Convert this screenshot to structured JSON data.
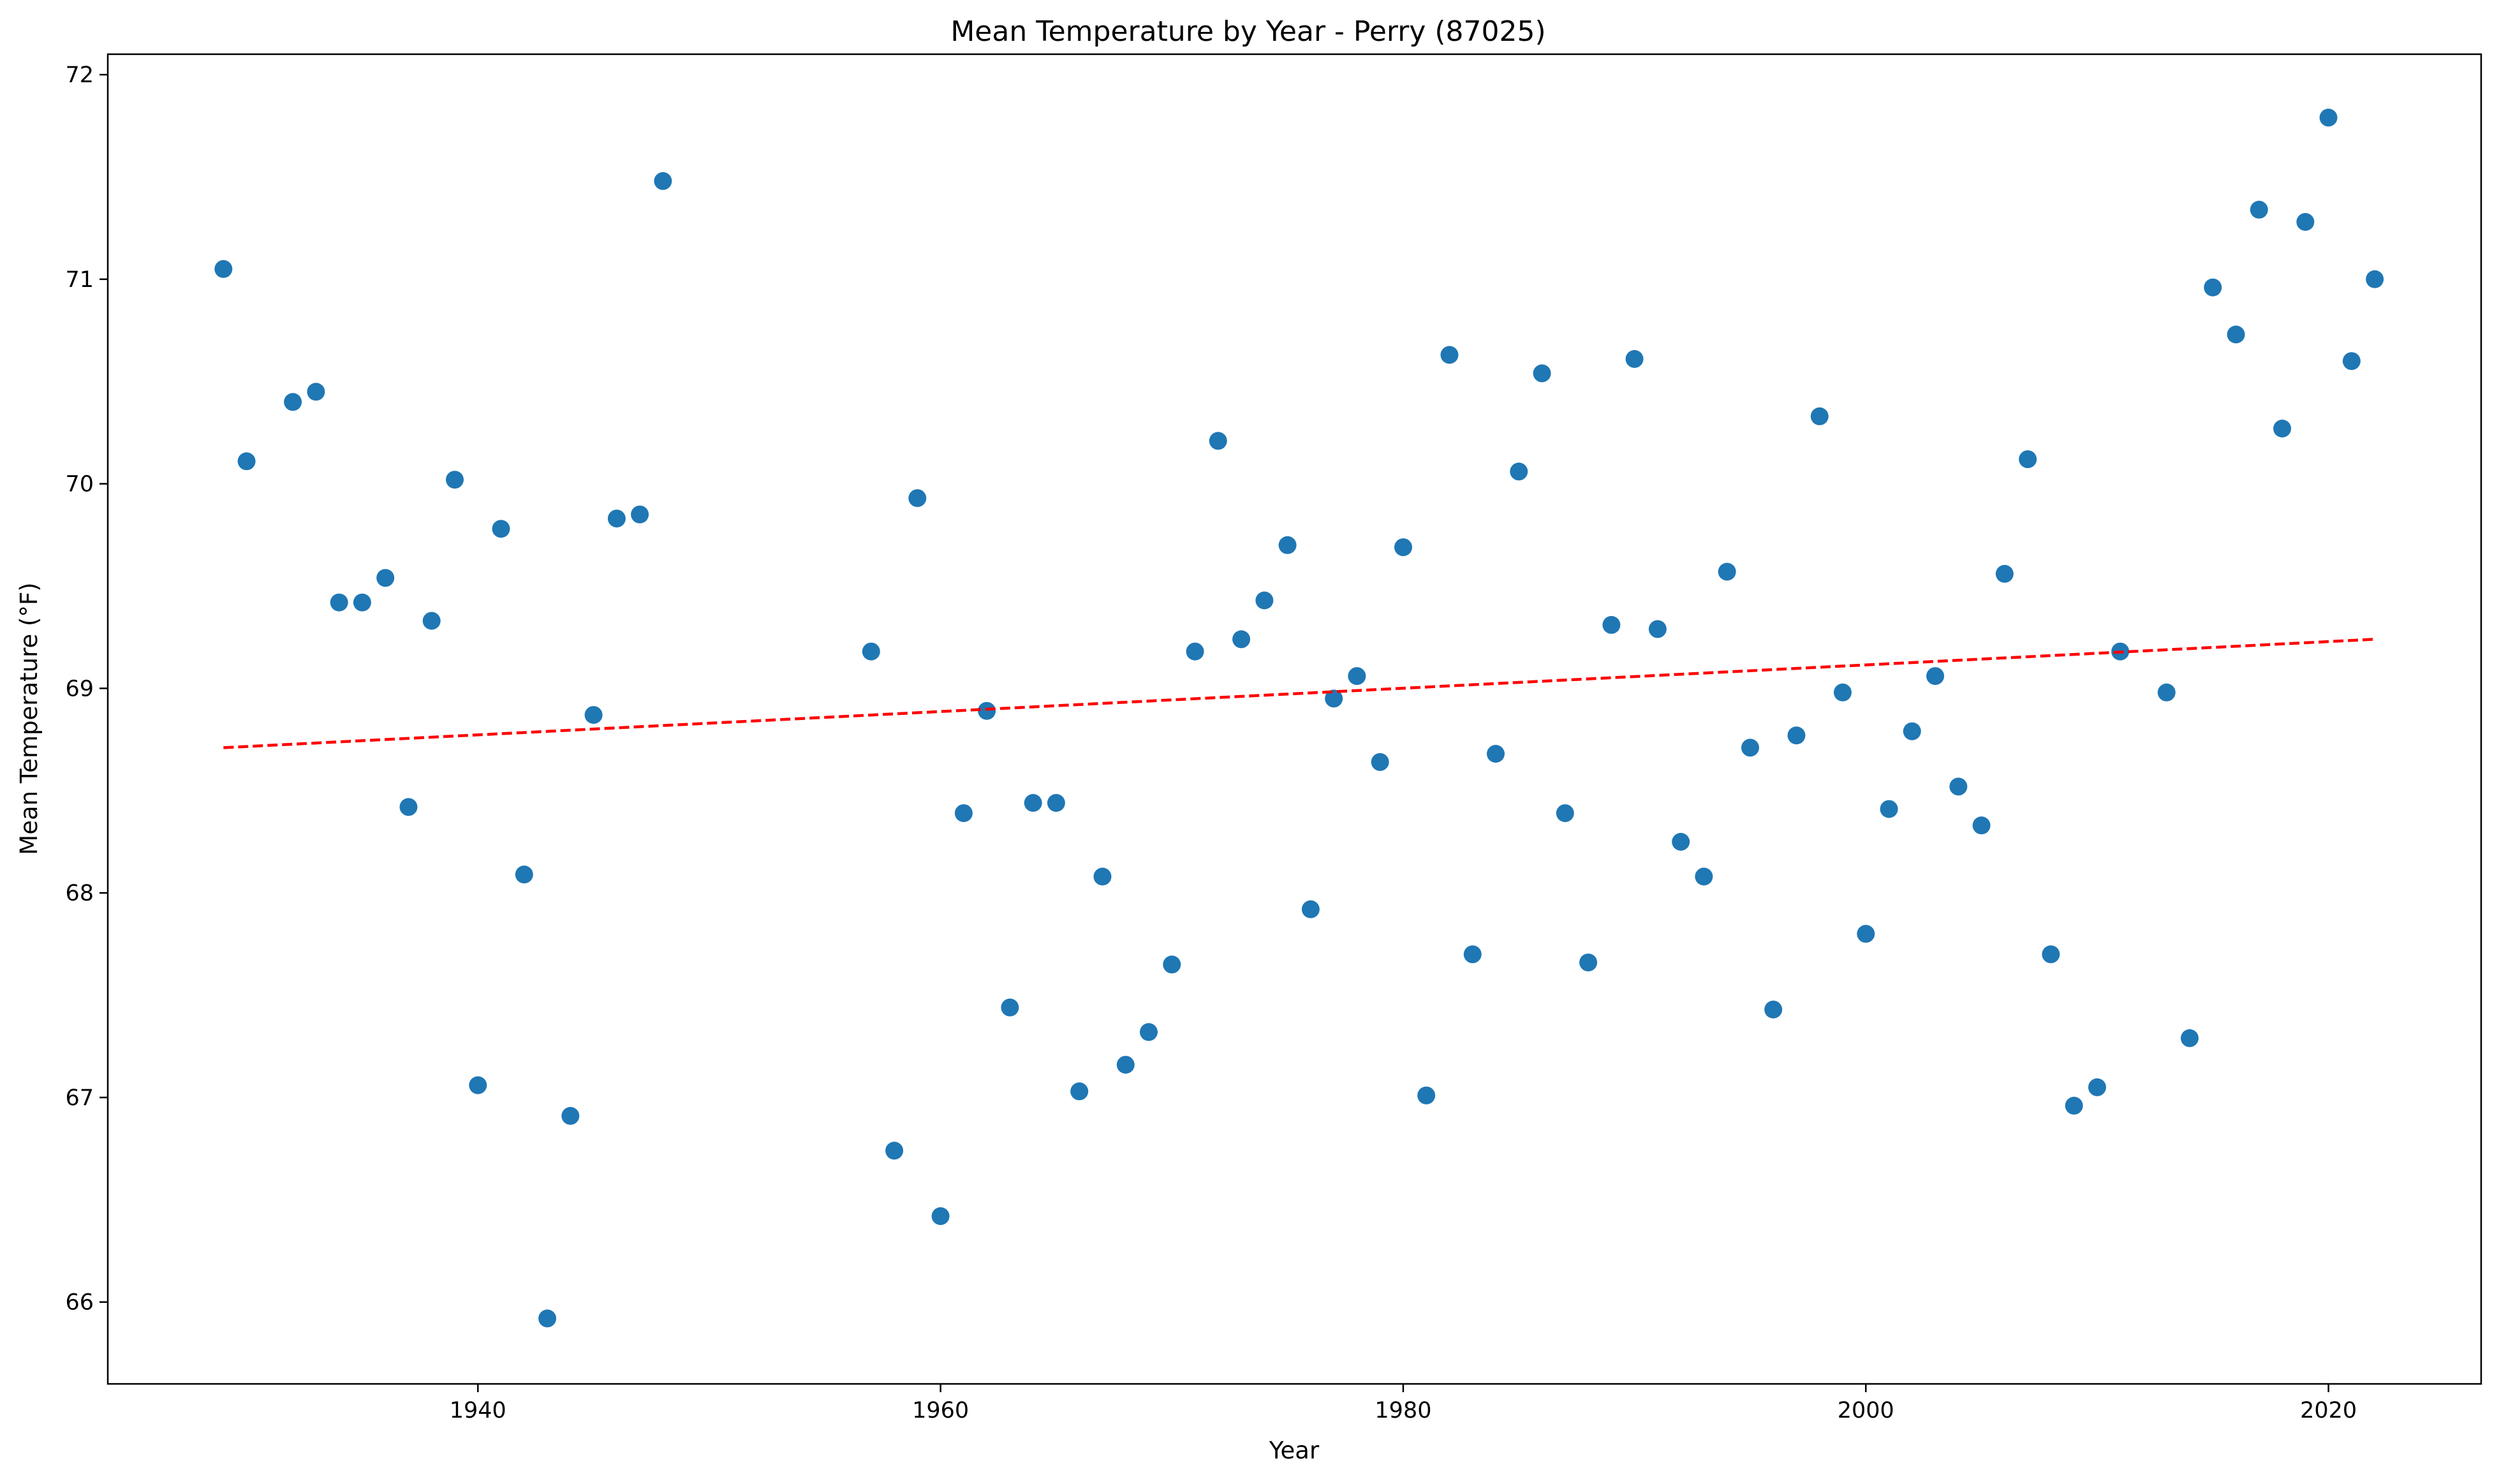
{
  "chart_data": {
    "type": "scatter",
    "title": "Mean Temperature by Year - Perry (87025)",
    "xlabel": "Year",
    "ylabel": "Mean Temperature (°F)",
    "xlim": [
      1924,
      2026.6
    ],
    "ylim": [
      65.6,
      72.1
    ],
    "xticks": [
      1940,
      1960,
      1980,
      2000,
      2020
    ],
    "yticks": [
      66,
      67,
      68,
      69,
      70,
      71,
      72
    ],
    "grid": false,
    "colors": {
      "points": "#1f77b4",
      "trend": "#ff0000"
    },
    "series": [
      {
        "x": [
          1929,
          1930,
          1932,
          1933,
          1934,
          1935,
          1936,
          1937,
          1938,
          1939,
          1940,
          1941,
          1942,
          1943,
          1944,
          1945,
          1946,
          1947,
          1948,
          1957,
          1958,
          1959,
          1960,
          1961,
          1962,
          1963,
          1964,
          1965,
          1966,
          1967,
          1968,
          1969,
          1970,
          1971,
          1972,
          1973,
          1974,
          1975,
          1976,
          1977,
          1978,
          1979,
          1980,
          1981,
          1982,
          1983,
          1984,
          1985,
          1986,
          1987,
          1988,
          1989,
          1990,
          1991,
          1992,
          1993,
          1994,
          1995,
          1996,
          1997,
          1998,
          1999,
          2000,
          2001,
          2002,
          2003,
          2004,
          2005,
          2006,
          2007,
          2008,
          2009,
          2010,
          2011,
          2013,
          2014,
          2015,
          2016,
          2017,
          2018,
          2019,
          2020,
          2021,
          2022
        ],
        "y": [
          71.05,
          70.11,
          70.4,
          70.45,
          69.42,
          69.42,
          69.54,
          68.42,
          69.33,
          70.02,
          67.06,
          69.78,
          68.09,
          65.92,
          66.91,
          68.87,
          69.83,
          69.85,
          71.48,
          69.18,
          66.74,
          69.93,
          66.42,
          68.39,
          68.89,
          67.44,
          68.44,
          68.44,
          67.03,
          68.08,
          67.16,
          67.32,
          67.65,
          69.18,
          70.21,
          69.24,
          69.43,
          69.7,
          67.92,
          68.95,
          69.06,
          68.64,
          69.69,
          67.01,
          70.63,
          67.7,
          68.68,
          70.06,
          70.54,
          68.39,
          67.66,
          69.31,
          70.61,
          69.29,
          68.25,
          68.08,
          69.57,
          68.71,
          67.43,
          68.77,
          70.33,
          68.98,
          67.8,
          68.41,
          68.79,
          69.06,
          68.52,
          68.33,
          69.56,
          70.12,
          67.7,
          66.96,
          67.05,
          69.18,
          68.98,
          67.29,
          70.96,
          70.73,
          71.34,
          70.27,
          71.28,
          71.79,
          70.6,
          71.0
        ]
      }
    ],
    "trendline": {
      "x": [
        1929,
        2022
      ],
      "y": [
        68.71,
        69.24
      ]
    }
  }
}
